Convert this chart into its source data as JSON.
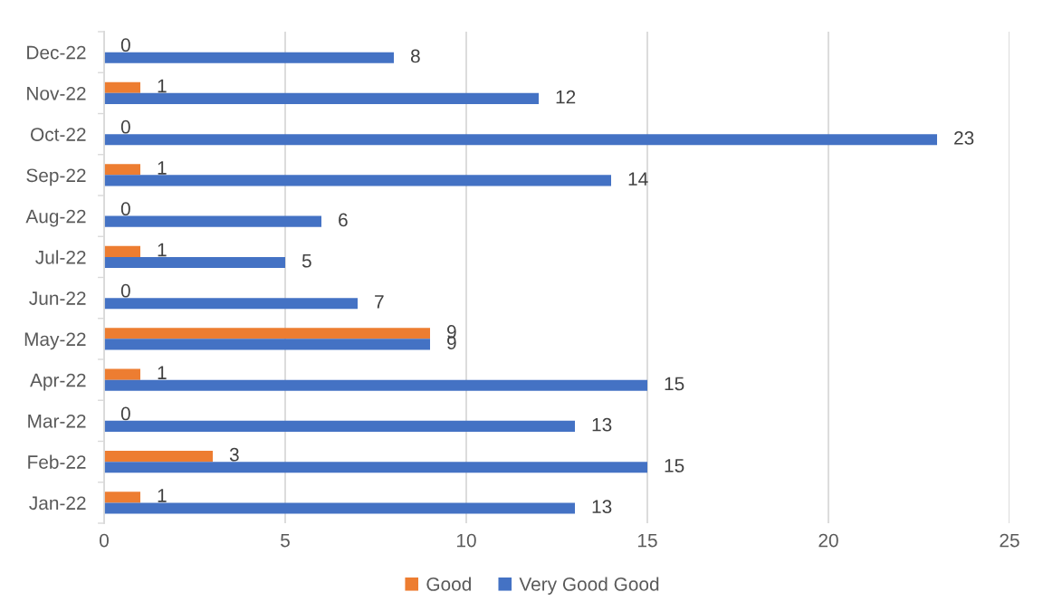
{
  "chart_data": {
    "type": "bar",
    "orientation": "horizontal",
    "categories": [
      "Dec-22",
      "Nov-22",
      "Oct-22",
      "Sep-22",
      "Aug-22",
      "Jul-22",
      "Jun-22",
      "May-22",
      "Apr-22",
      "Mar-22",
      "Feb-22",
      "Jan-22"
    ],
    "series": [
      {
        "name": "Good",
        "color": "#ed7d31",
        "values": [
          0,
          1,
          0,
          1,
          0,
          1,
          0,
          9,
          1,
          0,
          3,
          1
        ]
      },
      {
        "name": "Very Good Good",
        "color": "#4472c4",
        "values": [
          8,
          12,
          23,
          14,
          6,
          5,
          7,
          9,
          15,
          13,
          15,
          13
        ]
      }
    ],
    "xlim": [
      0,
      25
    ],
    "xticks": [
      0,
      5,
      10,
      15,
      20,
      25
    ],
    "grid": "x",
    "legend": "bottom",
    "data_labels": true
  }
}
